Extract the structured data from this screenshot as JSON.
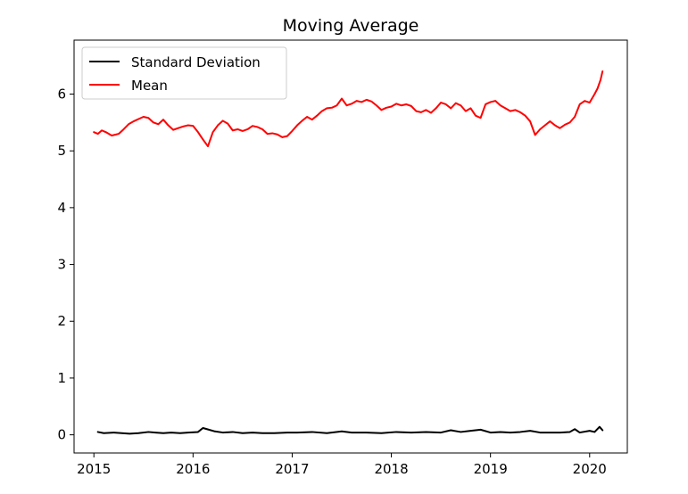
{
  "chart_data": {
    "type": "line",
    "title": "Moving Average",
    "xlabel": "",
    "ylabel": "",
    "xlim": [
      2014.8,
      2020.38
    ],
    "ylim": [
      -0.32,
      6.95
    ],
    "xticks": [
      2015,
      2016,
      2017,
      2018,
      2019,
      2020
    ],
    "xtick_labels": [
      "2015",
      "2016",
      "2017",
      "2018",
      "2019",
      "2020"
    ],
    "yticks": [
      0,
      1,
      2,
      3,
      4,
      5,
      6
    ],
    "ytick_labels": [
      "0",
      "1",
      "2",
      "3",
      "4",
      "5",
      "6"
    ],
    "grid": false,
    "legend": "upper-left",
    "series": [
      {
        "name": "Standard Deviation",
        "color": "#000000",
        "x": [
          2015.04,
          2015.1,
          2015.2,
          2015.28,
          2015.36,
          2015.45,
          2015.55,
          2015.62,
          2015.7,
          2015.78,
          2015.87,
          2015.95,
          2016.05,
          2016.1,
          2016.14,
          2016.22,
          2016.3,
          2016.4,
          2016.5,
          2016.6,
          2016.7,
          2016.82,
          2016.95,
          2017.05,
          2017.2,
          2017.35,
          2017.5,
          2017.6,
          2017.75,
          2017.9,
          2018.05,
          2018.2,
          2018.35,
          2018.5,
          2018.6,
          2018.7,
          2018.8,
          2018.9,
          2019.0,
          2019.1,
          2019.2,
          2019.3,
          2019.4,
          2019.5,
          2019.6,
          2019.7,
          2019.8,
          2019.85,
          2019.9,
          2020.0,
          2020.05,
          2020.1,
          2020.13
        ],
        "values": [
          0.05,
          0.03,
          0.04,
          0.03,
          0.02,
          0.03,
          0.05,
          0.04,
          0.03,
          0.04,
          0.03,
          0.04,
          0.05,
          0.12,
          0.1,
          0.06,
          0.04,
          0.05,
          0.03,
          0.04,
          0.03,
          0.03,
          0.04,
          0.04,
          0.05,
          0.03,
          0.06,
          0.04,
          0.04,
          0.03,
          0.05,
          0.04,
          0.05,
          0.04,
          0.08,
          0.05,
          0.07,
          0.09,
          0.04,
          0.05,
          0.04,
          0.05,
          0.07,
          0.04,
          0.04,
          0.04,
          0.05,
          0.1,
          0.04,
          0.07,
          0.05,
          0.14,
          0.08
        ]
      },
      {
        "name": "Mean",
        "color": "#ff0000",
        "x": [
          2015.0,
          2015.04,
          2015.08,
          2015.12,
          2015.18,
          2015.25,
          2015.3,
          2015.35,
          2015.4,
          2015.45,
          2015.5,
          2015.55,
          2015.6,
          2015.65,
          2015.7,
          2015.75,
          2015.8,
          2015.85,
          2015.9,
          2015.95,
          2016.0,
          2016.05,
          2016.1,
          2016.15,
          2016.2,
          2016.25,
          2016.3,
          2016.35,
          2016.4,
          2016.45,
          2016.5,
          2016.55,
          2016.6,
          2016.65,
          2016.7,
          2016.75,
          2016.8,
          2016.85,
          2016.9,
          2016.95,
          2017.0,
          2017.05,
          2017.1,
          2017.15,
          2017.2,
          2017.25,
          2017.3,
          2017.35,
          2017.4,
          2017.45,
          2017.5,
          2017.55,
          2017.6,
          2017.65,
          2017.7,
          2017.75,
          2017.8,
          2017.85,
          2017.9,
          2017.95,
          2018.0,
          2018.05,
          2018.1,
          2018.15,
          2018.2,
          2018.25,
          2018.3,
          2018.35,
          2018.4,
          2018.45,
          2018.5,
          2018.55,
          2018.6,
          2018.65,
          2018.7,
          2018.75,
          2018.8,
          2018.85,
          2018.9,
          2018.95,
          2019.0,
          2019.05,
          2019.1,
          2019.15,
          2019.2,
          2019.25,
          2019.3,
          2019.35,
          2019.4,
          2019.45,
          2019.5,
          2019.55,
          2019.6,
          2019.65,
          2019.7,
          2019.75,
          2019.8,
          2019.85,
          2019.9,
          2019.95,
          2020.0,
          2020.05,
          2020.08,
          2020.11,
          2020.13
        ],
        "values": [
          5.33,
          5.3,
          5.36,
          5.33,
          5.27,
          5.3,
          5.38,
          5.47,
          5.52,
          5.56,
          5.6,
          5.58,
          5.5,
          5.47,
          5.55,
          5.45,
          5.37,
          5.4,
          5.43,
          5.45,
          5.44,
          5.33,
          5.2,
          5.08,
          5.33,
          5.45,
          5.53,
          5.48,
          5.36,
          5.38,
          5.35,
          5.38,
          5.44,
          5.42,
          5.38,
          5.3,
          5.31,
          5.29,
          5.24,
          5.26,
          5.35,
          5.45,
          5.53,
          5.6,
          5.55,
          5.62,
          5.7,
          5.75,
          5.76,
          5.8,
          5.92,
          5.8,
          5.83,
          5.88,
          5.86,
          5.9,
          5.87,
          5.8,
          5.72,
          5.76,
          5.78,
          5.83,
          5.8,
          5.82,
          5.79,
          5.7,
          5.68,
          5.72,
          5.67,
          5.75,
          5.85,
          5.82,
          5.75,
          5.84,
          5.8,
          5.7,
          5.75,
          5.62,
          5.58,
          5.82,
          5.86,
          5.88,
          5.8,
          5.75,
          5.7,
          5.72,
          5.68,
          5.62,
          5.52,
          5.28,
          5.38,
          5.45,
          5.52,
          5.45,
          5.4,
          5.46,
          5.5,
          5.6,
          5.82,
          5.88,
          5.85,
          6.0,
          6.1,
          6.25,
          6.4
        ]
      }
    ]
  }
}
